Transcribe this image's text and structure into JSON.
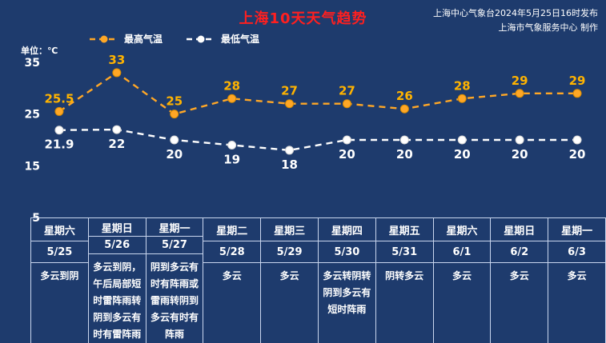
{
  "colors": {
    "background": "#1e3b6d",
    "title": "#ff1f1f",
    "high_series": "#ffa726",
    "high_label": "#ffb300",
    "low_series": "#ffffff",
    "text": "#ffffff",
    "table_border": "#c9d6ee"
  },
  "header": {
    "source_line1": "上海中心气象台2024年5月25日16时发布",
    "source_line2": "上海市气象服务中心 制作"
  },
  "chart_data": {
    "type": "line",
    "title": "上海10天天气趋势",
    "ylabel": "单位：℃",
    "ylim": [
      5,
      35
    ],
    "yticks": [
      35,
      25,
      15,
      5
    ],
    "grid": false,
    "legend_position": "top",
    "categories": [
      "5/25",
      "5/26",
      "5/27",
      "5/28",
      "5/29",
      "5/30",
      "5/31",
      "6/1",
      "6/2",
      "6/3"
    ],
    "series": [
      {
        "name": "最高气温",
        "color": "#ffa726",
        "values": [
          25.5,
          33,
          25,
          28,
          27,
          27,
          26,
          28,
          29,
          29
        ]
      },
      {
        "name": "最低气温",
        "color": "#ffffff",
        "values": [
          21.9,
          22,
          20,
          19,
          18,
          20,
          20,
          20,
          20,
          20
        ]
      }
    ]
  },
  "table": {
    "days": [
      {
        "weekday": "星期六",
        "date": "5/25",
        "weather": "多云到阴"
      },
      {
        "weekday": "星期日",
        "date": "5/26",
        "weather": "多云到阴，午后局部短时雷阵雨转阴到多云有时有雷阵雨"
      },
      {
        "weekday": "星期一",
        "date": "5/27",
        "weather": "阴到多云有时有阵雨或雷雨转阴到多云有时有阵雨"
      },
      {
        "weekday": "星期二",
        "date": "5/28",
        "weather": "多云"
      },
      {
        "weekday": "星期三",
        "date": "5/29",
        "weather": "多云"
      },
      {
        "weekday": "星期四",
        "date": "5/30",
        "weather": "多云转阴转阴到多云有短时阵雨"
      },
      {
        "weekday": "星期五",
        "date": "5/31",
        "weather": "阴转多云"
      },
      {
        "weekday": "星期六",
        "date": "6/1",
        "weather": "多云"
      },
      {
        "weekday": "星期日",
        "date": "6/2",
        "weather": "多云"
      },
      {
        "weekday": "星期一",
        "date": "6/3",
        "weather": "多云"
      }
    ]
  }
}
